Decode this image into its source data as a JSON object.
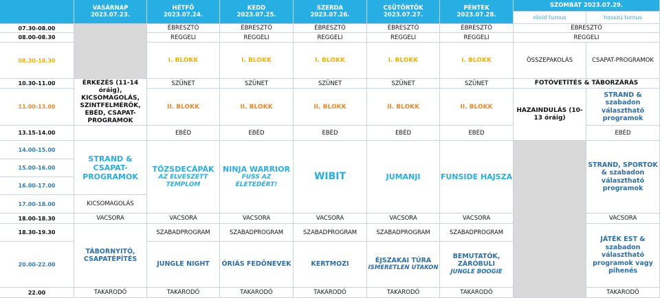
{
  "header": {
    "days": [
      {
        "name": "VASÁRNAP",
        "date": "2023.07.23."
      },
      {
        "name": "HÉTFŐ",
        "date": "2023.07.24."
      },
      {
        "name": "KEDD",
        "date": "2023.07.25."
      },
      {
        "name": "SZERDA",
        "date": "2023.07.26."
      },
      {
        "name": "CSÜTÖRTÖK",
        "date": "2023.07.27."
      },
      {
        "name": "PÉNTEK",
        "date": "2023.07.28."
      }
    ],
    "saturday": "SZOMBAT 2023.07.29.",
    "short_turn": "rövid turnus",
    "long_turn": "hosszú turnus"
  },
  "times": [
    "07.30-08.00",
    "08.00-08.30",
    "08.30-10.30",
    "10.30-11.00",
    "11.00-13.00",
    "13.15-14.00",
    "14.00-15.00",
    "15.00-16.00",
    "16.00-17.00",
    "17.00-18.00",
    "18.00-18.30",
    "18.30-19.30",
    "20.00-22.00",
    "22.00"
  ],
  "cells": {
    "wake": "ÉBRESZTŐ",
    "breakfast": "REGGELI",
    "block1": "I. BLOKK",
    "break": "SZÜNET",
    "block2": "II. BLOKK",
    "lunch": "EBÉD",
    "dinner": "VACSORA",
    "free": "SZABADPROGRAM",
    "lights_out": "TAKARODÓ",
    "packing_short": "ÖSSZEPAKOLÁS",
    "team_programs": "CSAPAT-PROGRAMOK",
    "photo_closing": "FOTÓVETÍTÉS & TÁBORZÁRÁS",
    "home_going": "HAZAINDULÁS (10-13 óráig)",
    "strand_long": "STRAND & szabadon választható programok",
    "sunday_arrival": "ÉRKEZÉS (11-14 óráig), KICSOMAGOLÁS, SZINTFELMÉRŐK, EBÉD, CSAPAT-PROGRAMOK",
    "sunday_strand": "STRAND & CSAPAT-PROGRAMOK",
    "sunday_unpack": "KICSOMAGOLÁS",
    "sunday_evening": "TÁBORNYITÓ, CSAPATÉPÍTÉS",
    "mon_main": "TŐZSDECÁPÁK",
    "mon_sub": "AZ ELVESZETT TEMPLOM",
    "tue_main": "NINJA WARRIOR",
    "tue_sub": "FUSS AZ ÉLETEDÉRT!",
    "wed_main": "WIBIT",
    "thu_main": "JUMANJI",
    "fri_main": "FUNSIDE HAJSZA",
    "sat_afternoon": "STRAND, SPORTOK & szabadon választható programok",
    "mon_evening": "JUNGLE NIGHT",
    "tue_evening": "ÓRIÁS FEDŐNEVEK",
    "wed_evening": "KERTMOZI",
    "thu_evening": "ÉJSZAKAI TÚRA",
    "thu_evening_sub": "ISMERETLEN UTAKON",
    "fri_evening": "BEMUTATÓK, ZÁRÓBULI",
    "fri_evening_sub": "JUNGLE BOOGIE",
    "sat_evening": "JÁTÉK EST & szabadon választható programok vagy pihenés"
  }
}
